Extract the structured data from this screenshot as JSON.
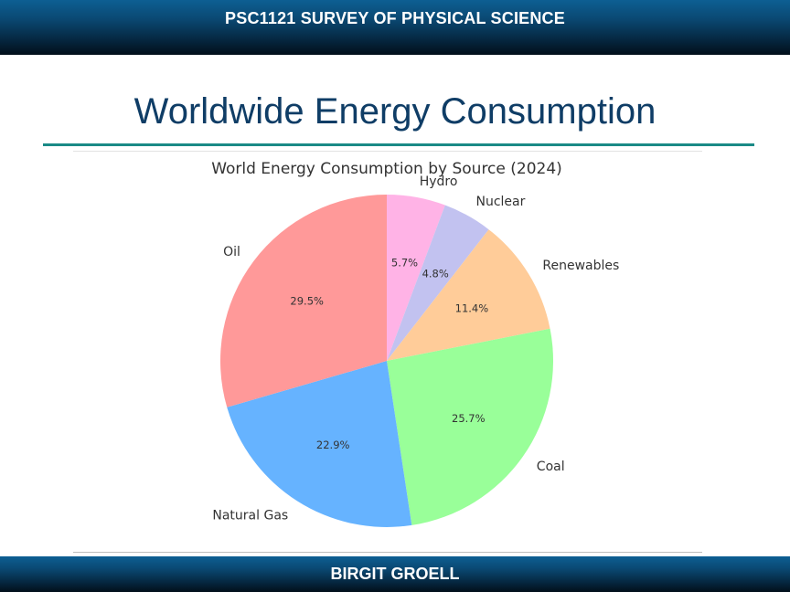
{
  "header": {
    "course": "PSC1121 SURVEY OF PHYSICAL SCIENCE"
  },
  "slide": {
    "title": "Worldwide Energy Consumption"
  },
  "footer": {
    "author": "BIRGIT GROELL"
  },
  "chart_data": {
    "type": "pie",
    "title": "World Energy Consumption by Source (2024)",
    "categories": [
      "Hydro",
      "Nuclear",
      "Renewables",
      "Coal",
      "Natural Gas",
      "Oil"
    ],
    "values": [
      5.7,
      4.8,
      11.4,
      25.7,
      22.9,
      29.5
    ],
    "value_labels": [
      "5.7%",
      "4.8%",
      "11.4%",
      "25.7%",
      "22.9%",
      "29.5%"
    ],
    "colors": [
      "#ffb3e6",
      "#c2c2f0",
      "#ffcc99",
      "#99ff99",
      "#66b3ff",
      "#ff9999"
    ],
    "start": "12 o'clock",
    "direction": "clockwise",
    "legend": "none"
  }
}
